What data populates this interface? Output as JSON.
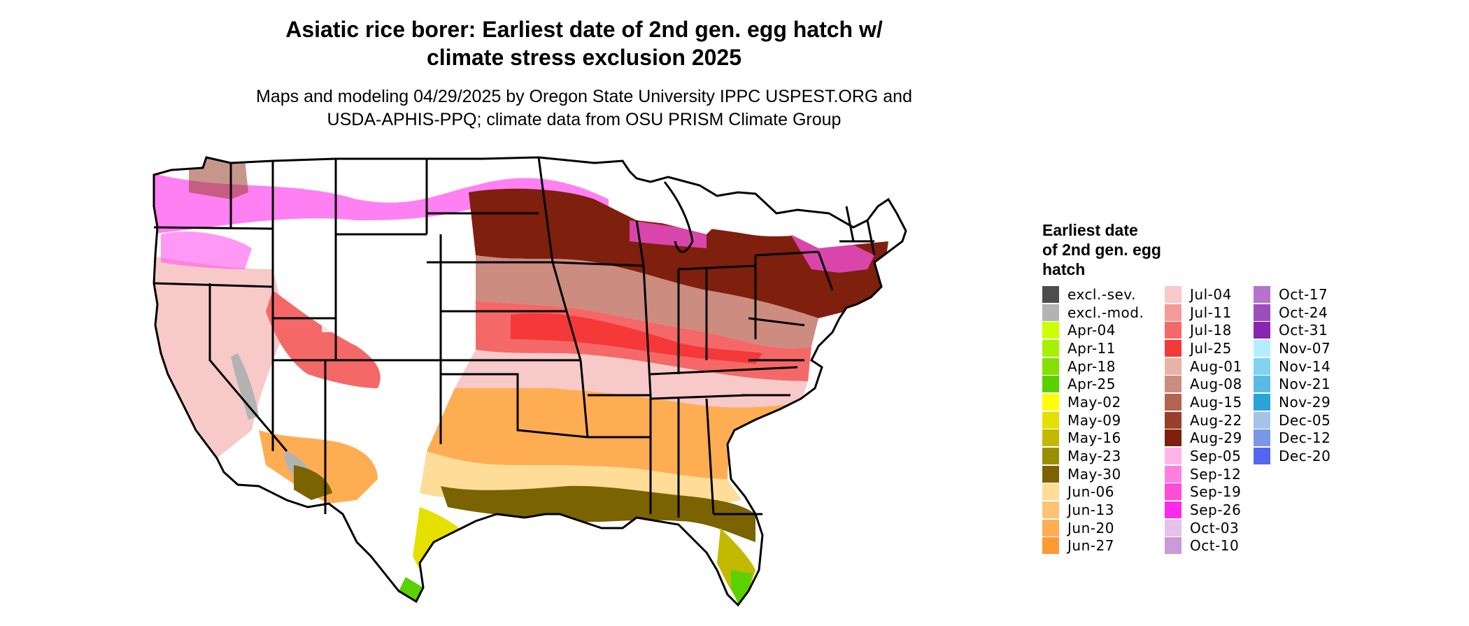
{
  "title": {
    "line1": "Asiatic rice borer: Earliest date of 2nd gen. egg hatch w/",
    "line2": "climate stress exclusion 2025"
  },
  "subtitle": {
    "line1": "Maps and modeling 04/29/2025 by Oregon State University IPPC USPEST.ORG and",
    "line2": "USDA-APHIS-PPQ; climate data from OSU PRISM Climate Group"
  },
  "legend": {
    "title_lines": [
      "Earliest date",
      "of 2nd gen. egg",
      "hatch"
    ],
    "columns": [
      [
        {
          "label": "excl.-sev.",
          "color": "#4d4d4d"
        },
        {
          "label": "excl.-mod.",
          "color": "#b3b3b3"
        },
        {
          "label": "Apr-04",
          "color": "#ccff00"
        },
        {
          "label": "Apr-11",
          "color": "#a6f000"
        },
        {
          "label": "Apr-18",
          "color": "#85e000"
        },
        {
          "label": "Apr-25",
          "color": "#5ad100"
        },
        {
          "label": "May-02",
          "color": "#ffff00"
        },
        {
          "label": "May-09",
          "color": "#e5e000"
        },
        {
          "label": "May-16",
          "color": "#c2b900"
        },
        {
          "label": "May-23",
          "color": "#9a8f00"
        },
        {
          "label": "May-30",
          "color": "#7a6300"
        },
        {
          "label": "Jun-06",
          "color": "#ffdd99"
        },
        {
          "label": "Jun-13",
          "color": "#ffc373"
        },
        {
          "label": "Jun-20",
          "color": "#ffad52"
        },
        {
          "label": "Jun-27",
          "color": "#ff9933"
        }
      ],
      [
        {
          "label": "Jul-04",
          "color": "#f7c9c9"
        },
        {
          "label": "Jul-11",
          "color": "#f59a9a"
        },
        {
          "label": "Jul-18",
          "color": "#f56868"
        },
        {
          "label": "Jul-25",
          "color": "#f53838"
        },
        {
          "label": "Aug-01",
          "color": "#e6b3a8"
        },
        {
          "label": "Aug-08",
          "color": "#cc8c80"
        },
        {
          "label": "Aug-15",
          "color": "#b36352"
        },
        {
          "label": "Aug-22",
          "color": "#993f2c"
        },
        {
          "label": "Aug-29",
          "color": "#7f1f0d"
        },
        {
          "label": "Sep-05",
          "color": "#ffb3e6"
        },
        {
          "label": "Sep-12",
          "color": "#ff80dd"
        },
        {
          "label": "Sep-19",
          "color": "#ff4dd9"
        },
        {
          "label": "Sep-26",
          "color": "#ff2aee"
        },
        {
          "label": "Oct-03",
          "color": "#e6c2ea"
        },
        {
          "label": "Oct-10",
          "color": "#cc99d9"
        }
      ],
      [
        {
          "label": "Oct-17",
          "color": "#b573cc"
        },
        {
          "label": "Oct-24",
          "color": "#9e4dbf"
        },
        {
          "label": "Oct-31",
          "color": "#8826b0"
        },
        {
          "label": "Nov-07",
          "color": "#b3eeff"
        },
        {
          "label": "Nov-14",
          "color": "#80d4f0"
        },
        {
          "label": "Nov-21",
          "color": "#5abce6"
        },
        {
          "label": "Nov-29",
          "color": "#2aa3d9"
        },
        {
          "label": "Dec-05",
          "color": "#a6c2e6"
        },
        {
          "label": "Dec-12",
          "color": "#7b96e6"
        },
        {
          "label": "Dec-20",
          "color": "#5566ee"
        }
      ]
    ]
  },
  "map_colors": {
    "white": "#ffffff",
    "magenta": "#ff55ee",
    "pink_light": "#f7c9c9",
    "salmon": "#f56868",
    "red": "#f53838",
    "brown_light": "#cc8c80",
    "brown_mid": "#993f2c",
    "brown_dark": "#7f1f0d",
    "orange_light": "#ffdd99",
    "orange": "#ffad52",
    "olive": "#7a6300",
    "olive_light": "#c2b900",
    "yellow": "#e5e000",
    "green": "#5ad100",
    "gray": "#b3b3b3"
  }
}
